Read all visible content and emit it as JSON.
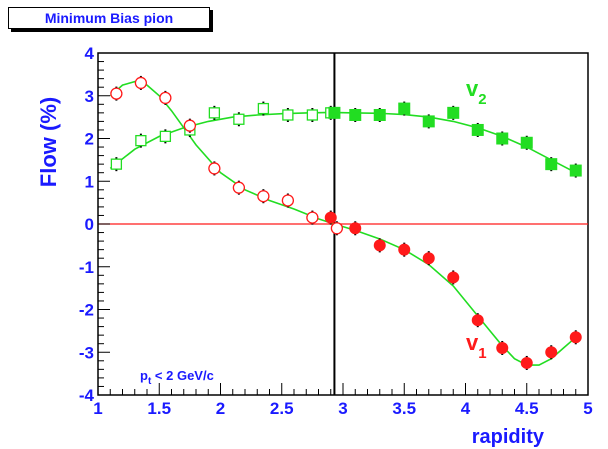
{
  "chart_data": {
    "type": "scatter",
    "title": "Minimum Bias pion",
    "xlabel": "rapidity",
    "ylabel": "Flow (%)",
    "xlim": [
      1,
      5
    ],
    "ylim": [
      -4,
      4
    ],
    "xticks": [
      "1",
      "1.5",
      "2",
      "2.5",
      "3",
      "3.5",
      "4",
      "4.5",
      "5"
    ],
    "yticks": [
      "4",
      "3",
      "2",
      "1",
      "0",
      "-1",
      "-2",
      "-3",
      "-4"
    ],
    "vertical_line_x": 2.93,
    "zero_line": true,
    "annotation": {
      "p": "p",
      "sub": "t",
      "rest": " < 2 GeV/c"
    },
    "series": [
      {
        "label_main": "v",
        "label_sub": "2",
        "color": "#22dd22",
        "open": {
          "x": [
            1.15,
            1.35,
            1.55,
            1.75,
            1.95,
            2.15,
            2.35,
            2.55,
            2.75,
            2.9
          ],
          "y": [
            1.4,
            1.95,
            2.05,
            2.2,
            2.6,
            2.45,
            2.7,
            2.55,
            2.55,
            2.6
          ]
        },
        "filled": {
          "x": [
            2.93,
            3.1,
            3.3,
            3.5,
            3.7,
            3.9,
            4.1,
            4.3,
            4.5,
            4.7,
            4.9
          ],
          "y": [
            2.6,
            2.55,
            2.55,
            2.7,
            2.4,
            2.6,
            2.2,
            2.0,
            1.9,
            1.4,
            1.25
          ]
        },
        "fit": {
          "x": [
            1.1,
            1.3,
            1.5,
            1.7,
            1.9,
            2.1,
            2.3,
            2.5,
            2.7,
            2.9,
            3.1,
            3.3,
            3.5,
            3.7,
            3.9,
            4.1,
            4.3,
            4.5,
            4.7,
            4.9
          ],
          "y": [
            1.3,
            1.75,
            2.05,
            2.25,
            2.4,
            2.5,
            2.55,
            2.58,
            2.6,
            2.61,
            2.6,
            2.59,
            2.56,
            2.5,
            2.4,
            2.25,
            2.05,
            1.8,
            1.5,
            1.2
          ]
        }
      },
      {
        "label_main": "v",
        "label_sub": "1",
        "color": "#ff1a1a",
        "open": {
          "x": [
            1.15,
            1.35,
            1.55,
            1.75,
            1.95,
            2.15,
            2.35,
            2.55,
            2.75,
            2.95
          ],
          "y": [
            3.05,
            3.3,
            2.95,
            2.3,
            1.3,
            0.85,
            0.65,
            0.55,
            0.15,
            -0.1
          ]
        },
        "filled": {
          "x": [
            2.9,
            3.1,
            3.3,
            3.5,
            3.7,
            3.9,
            4.1,
            4.3,
            4.5,
            4.7,
            4.9
          ],
          "y": [
            0.15,
            -0.1,
            -0.5,
            -0.6,
            -0.8,
            -1.25,
            -2.25,
            -2.9,
            -3.25,
            -3.0,
            -2.65
          ]
        },
        "fit": {
          "x": [
            1.1,
            1.2,
            1.3,
            1.4,
            1.5,
            1.6,
            1.7,
            1.8,
            2.0,
            2.2,
            2.4,
            2.6,
            2.8,
            2.93,
            3.1,
            3.3,
            3.5,
            3.7,
            3.9,
            4.1,
            4.2,
            4.3,
            4.4,
            4.5,
            4.6,
            4.7,
            4.8,
            4.9
          ],
          "y": [
            3.0,
            3.25,
            3.33,
            3.25,
            3.0,
            2.65,
            2.25,
            1.85,
            1.2,
            0.8,
            0.55,
            0.35,
            0.12,
            0.0,
            -0.15,
            -0.35,
            -0.6,
            -0.95,
            -1.45,
            -2.15,
            -2.5,
            -2.85,
            -3.15,
            -3.3,
            -3.3,
            -3.15,
            -2.9,
            -2.65
          ]
        }
      }
    ]
  }
}
